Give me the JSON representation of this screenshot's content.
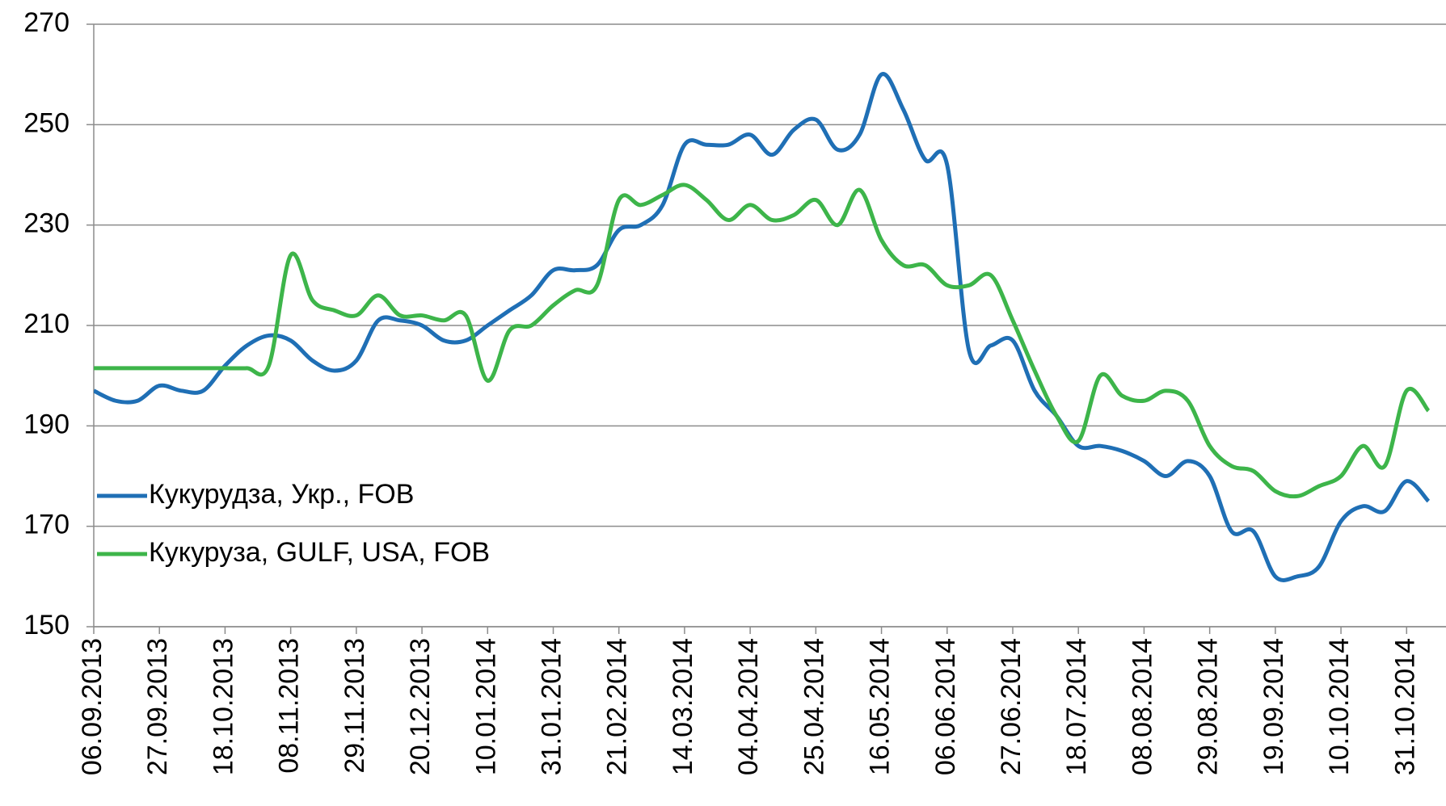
{
  "chart_data": {
    "type": "line",
    "categories": [
      "06.09.2013",
      null,
      null,
      "27.09.2013",
      null,
      null,
      "18.10.2013",
      null,
      null,
      "08.11.2013",
      null,
      null,
      "29.11.2013",
      null,
      null,
      "20.12.2013",
      null,
      null,
      "10.01.2014",
      null,
      null,
      "31.01.2014",
      null,
      null,
      "21.02.2014",
      null,
      null,
      "14.03.2014",
      null,
      null,
      "04.04.2014",
      null,
      null,
      "25.04.2014",
      null,
      null,
      "16.05.2014",
      null,
      null,
      "06.06.2014",
      null,
      null,
      "27.06.2014",
      null,
      null,
      "18.07.2014",
      null,
      null,
      "08.08.2014",
      null,
      null,
      "29.08.2014",
      null,
      null,
      "19.09.2014",
      null,
      null,
      "10.10.2014",
      null,
      null,
      "31.10.2014",
      null
    ],
    "series": [
      {
        "name": "Кукурудза, Укр., FOB",
        "color": "#1f6fb5",
        "values": [
          197,
          195,
          195,
          198,
          197,
          197,
          202,
          206,
          208,
          207,
          203,
          201,
          203,
          211,
          211,
          210,
          207,
          207,
          210,
          213,
          216,
          221,
          221,
          222,
          229,
          230,
          234,
          246,
          246,
          246,
          248,
          244,
          249,
          251,
          245,
          248,
          260,
          253,
          243,
          242,
          205,
          206,
          207,
          197,
          192,
          186,
          186,
          185,
          183,
          180,
          183,
          180,
          169,
          169,
          160,
          160,
          162,
          171,
          174,
          173,
          179,
          175
        ]
      },
      {
        "name": "Кукуруза, GULF, USA, FOB",
        "color": "#3db54a",
        "values": [
          201.5,
          201.5,
          201.5,
          201.5,
          201.5,
          201.5,
          201.5,
          201.5,
          202,
          224,
          215,
          213,
          212,
          216,
          212,
          212,
          211,
          212,
          199,
          209,
          210,
          214,
          217,
          218,
          235,
          234,
          236,
          238,
          235,
          231,
          234,
          231,
          232,
          235,
          230,
          237,
          227,
          222,
          222,
          218,
          218,
          220,
          211,
          201,
          192,
          187,
          200,
          196,
          195,
          197,
          195,
          186,
          182,
          181,
          177,
          176,
          178,
          180,
          186,
          182,
          197,
          193
        ]
      }
    ],
    "ylim": [
      150,
      270
    ],
    "yticks": [
      150,
      170,
      190,
      210,
      230,
      250,
      270
    ],
    "grid": true,
    "legend": "left"
  }
}
